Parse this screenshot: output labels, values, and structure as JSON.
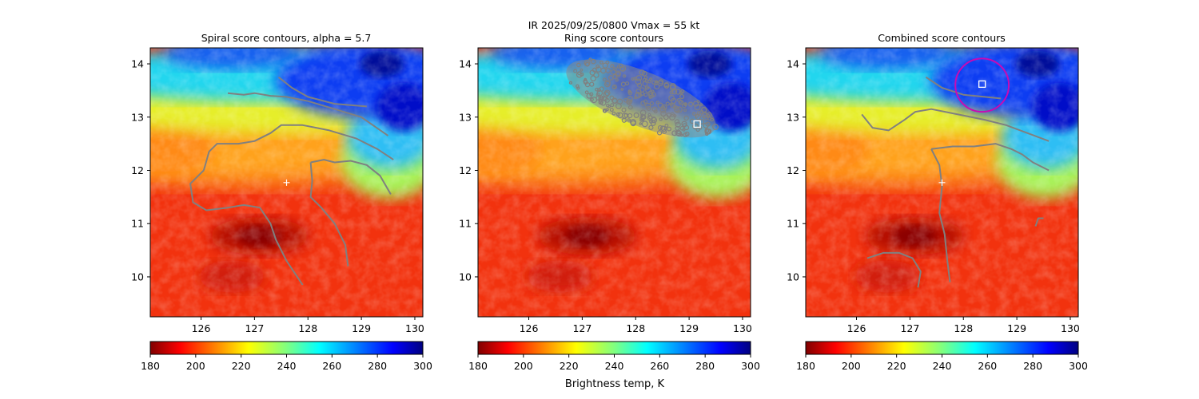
{
  "figure": {
    "suptitle_line1": "IR  2025/09/25/0800    Vmax = 55 kt",
    "colorbar_label": "Brightness temp, K"
  },
  "chart_data": [
    {
      "type": "heatmap",
      "title": "Spiral score contours, alpha =  5.7",
      "colormap": "jet",
      "xlim": [
        125.05,
        130.15
      ],
      "ylim": [
        9.25,
        14.3
      ],
      "xticks": [
        126,
        127,
        128,
        129,
        130
      ],
      "yticks": [
        10,
        11,
        12,
        13,
        14
      ],
      "color_range": [
        180,
        300
      ],
      "colorbar_ticks": [
        180,
        200,
        220,
        240,
        260,
        280,
        300
      ],
      "center_marker": {
        "lon": 127.6,
        "lat": 11.77,
        "marker": "+"
      },
      "contours": [
        [
          [
            126.5,
            13.45
          ],
          [
            126.8,
            13.42
          ],
          [
            127.0,
            13.45
          ],
          [
            127.3,
            13.4
          ],
          [
            127.6,
            13.38
          ],
          [
            128.0,
            13.3
          ],
          [
            128.5,
            13.15
          ],
          [
            129.0,
            13.0
          ],
          [
            129.5,
            12.65
          ]
        ],
        [
          [
            127.45,
            13.75
          ],
          [
            127.7,
            13.55
          ],
          [
            128.0,
            13.38
          ],
          [
            128.5,
            13.25
          ],
          [
            129.1,
            13.2
          ]
        ],
        [
          [
            126.05,
            12.0
          ],
          [
            126.15,
            12.35
          ],
          [
            126.3,
            12.5
          ],
          [
            126.7,
            12.5
          ],
          [
            127.0,
            12.55
          ],
          [
            127.3,
            12.7
          ],
          [
            127.5,
            12.85
          ],
          [
            127.9,
            12.85
          ],
          [
            128.4,
            12.75
          ],
          [
            128.9,
            12.6
          ],
          [
            129.3,
            12.4
          ],
          [
            129.6,
            12.2
          ]
        ],
        [
          [
            126.05,
            12.0
          ],
          [
            125.8,
            11.75
          ],
          [
            125.85,
            11.4
          ],
          [
            126.1,
            11.25
          ],
          [
            126.5,
            11.3
          ],
          [
            126.8,
            11.35
          ],
          [
            127.1,
            11.3
          ],
          [
            127.3,
            11.0
          ],
          [
            127.4,
            10.7
          ],
          [
            127.6,
            10.3
          ],
          [
            127.9,
            9.85
          ]
        ],
        [
          [
            128.05,
            12.15
          ],
          [
            128.3,
            12.2
          ],
          [
            128.5,
            12.15
          ],
          [
            128.8,
            12.18
          ],
          [
            129.1,
            12.1
          ],
          [
            129.35,
            11.9
          ],
          [
            129.55,
            11.55
          ]
        ],
        [
          [
            128.05,
            12.15
          ],
          [
            128.08,
            11.8
          ],
          [
            128.05,
            11.5
          ],
          [
            128.25,
            11.3
          ],
          [
            128.5,
            11.0
          ],
          [
            128.7,
            10.6
          ],
          [
            128.75,
            10.2
          ]
        ]
      ],
      "markers": []
    },
    {
      "type": "heatmap",
      "title": "Ring score contours",
      "colormap": "jet",
      "xlim": [
        125.05,
        130.15
      ],
      "ylim": [
        9.25,
        14.3
      ],
      "xticks": [
        126,
        127,
        128,
        129,
        130
      ],
      "yticks": [
        10,
        11,
        12,
        13,
        14
      ],
      "color_range": [
        180,
        300
      ],
      "colorbar_ticks": [
        180,
        200,
        220,
        240,
        260,
        280,
        300
      ],
      "center_marker": null,
      "ring_score_region": {
        "center_lon": 128.1,
        "center_lat": 13.35,
        "description": "dense gray ring-score contours"
      },
      "contours": [],
      "markers": [
        {
          "lon": 129.15,
          "lat": 12.87,
          "marker": "square"
        }
      ]
    },
    {
      "type": "heatmap",
      "title": "Combined score contours",
      "colormap": "jet",
      "xlim": [
        125.05,
        130.15
      ],
      "ylim": [
        9.25,
        14.3
      ],
      "xticks": [
        126,
        127,
        128,
        129,
        130
      ],
      "yticks": [
        10,
        11,
        12,
        13,
        14
      ],
      "color_range": [
        180,
        300
      ],
      "colorbar_ticks": [
        180,
        200,
        220,
        240,
        260,
        280,
        300
      ],
      "center_marker": {
        "lon": 127.6,
        "lat": 11.77,
        "marker": "+"
      },
      "contours": [
        [
          [
            127.3,
            13.75
          ],
          [
            127.6,
            13.55
          ],
          [
            128.0,
            13.42
          ],
          [
            128.4,
            13.38
          ],
          [
            128.7,
            13.35
          ]
        ],
        [
          [
            126.1,
            13.05
          ],
          [
            126.3,
            12.8
          ],
          [
            126.6,
            12.75
          ],
          [
            126.9,
            12.95
          ],
          [
            127.1,
            13.1
          ],
          [
            127.4,
            13.15
          ],
          [
            127.9,
            13.05
          ],
          [
            128.4,
            12.95
          ],
          [
            128.8,
            12.85
          ],
          [
            129.2,
            12.7
          ],
          [
            129.6,
            12.55
          ]
        ],
        [
          [
            127.4,
            12.4
          ],
          [
            127.8,
            12.45
          ],
          [
            128.2,
            12.45
          ],
          [
            128.6,
            12.5
          ],
          [
            128.9,
            12.4
          ],
          [
            129.1,
            12.3
          ],
          [
            129.3,
            12.15
          ],
          [
            129.6,
            12.0
          ]
        ],
        [
          [
            127.4,
            12.4
          ],
          [
            127.55,
            12.1
          ],
          [
            127.6,
            11.7
          ],
          [
            127.55,
            11.2
          ],
          [
            127.65,
            10.8
          ],
          [
            127.7,
            10.3
          ],
          [
            127.75,
            9.9
          ]
        ],
        [
          [
            126.2,
            10.35
          ],
          [
            126.5,
            10.45
          ],
          [
            126.8,
            10.45
          ],
          [
            127.05,
            10.35
          ],
          [
            127.2,
            10.1
          ],
          [
            127.15,
            9.8
          ]
        ],
        [
          [
            129.35,
            10.95
          ],
          [
            129.4,
            11.1
          ],
          [
            129.5,
            11.1
          ]
        ]
      ],
      "markers": [
        {
          "lon": 128.35,
          "lat": 13.62,
          "marker": "square"
        }
      ],
      "circle": {
        "lon": 128.35,
        "lat": 13.6,
        "radius_deg": 0.5,
        "color": "#c80ab4"
      }
    }
  ]
}
